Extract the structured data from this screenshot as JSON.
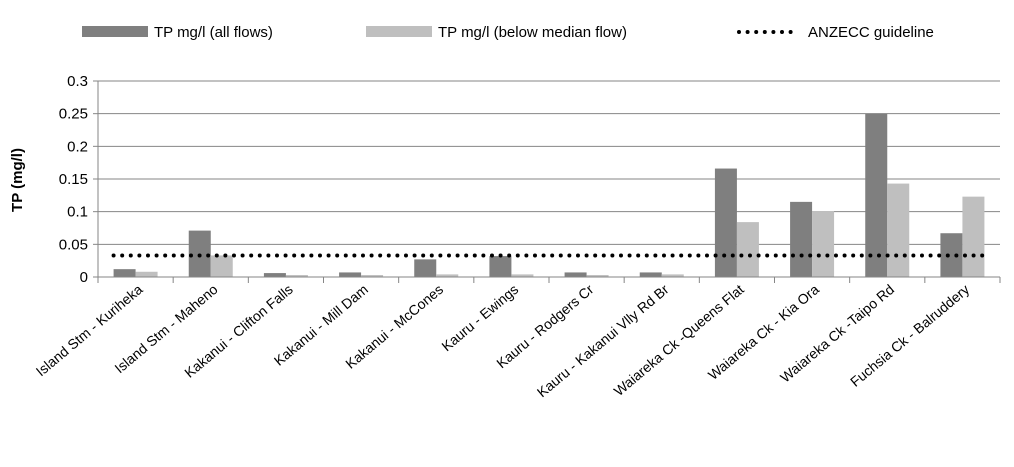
{
  "chart_data": {
    "type": "bar",
    "title": "",
    "xlabel": "",
    "ylabel": "TP (mg/l)",
    "ylim": [
      0,
      0.3
    ],
    "yticks": [
      0,
      0.05,
      0.1,
      0.15,
      0.2,
      0.25,
      0.3
    ],
    "ytick_labels": [
      "0",
      "0.05",
      "0.1",
      "0.15",
      "0.2",
      "0.25",
      "0.3"
    ],
    "grid": true,
    "legend_position": "top",
    "categories": [
      "Island Stm - Kuriheka",
      "Island Stm - Maheno",
      "Kakanui - Clifton Falls",
      "Kakanui - Mill Dam",
      "Kakanui - McCones",
      "Kauru - Ewings",
      "Kauru - Rodgers Cr",
      "Kauru - Kakanui Vlly Rd Br",
      "Waiareka Ck -Queens Flat",
      "Waiareka Ck - Kia Ora",
      "Waiareka Ck -Taipo Rd",
      "Fuchsia Ck - Balruddery"
    ],
    "series": [
      {
        "name": "TP mg/l (all flows)",
        "color": "#7f7f7f",
        "values": [
          0.012,
          0.071,
          0.006,
          0.007,
          0.027,
          0.032,
          0.007,
          0.007,
          0.166,
          0.115,
          0.25,
          0.067
        ]
      },
      {
        "name": "TP mg/l (below median flow)",
        "color": "#bfbfbf",
        "values": [
          0.008,
          0.033,
          0.003,
          0.003,
          0.004,
          0.004,
          0.003,
          0.004,
          0.084,
          0.101,
          0.143,
          0.123
        ]
      }
    ],
    "reference_line": {
      "name": "ANZECC guideline",
      "value": 0.033,
      "style": "dotted",
      "color": "#000000"
    },
    "colors": {
      "gridline": "#868686",
      "axis": "#868686",
      "text": "#000000"
    }
  }
}
